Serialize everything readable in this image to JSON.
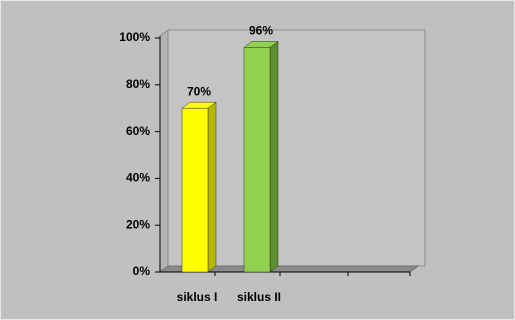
{
  "chart_data": {
    "type": "bar3d",
    "categories": [
      "siklus I",
      "siklus II"
    ],
    "values": [
      70,
      96
    ],
    "value_labels": [
      "70%",
      "96%"
    ],
    "colors": [
      "#ffff00",
      "#92d050"
    ],
    "side_colors": [
      "#b8b800",
      "#5a8f2a"
    ],
    "ylim": [
      0,
      100
    ],
    "yticks": [
      {
        "value": 0,
        "label": "0%"
      },
      {
        "value": 20,
        "label": "20%"
      },
      {
        "value": 40,
        "label": "40%"
      },
      {
        "value": 60,
        "label": "60%"
      },
      {
        "value": 80,
        "label": "80%"
      },
      {
        "value": 100,
        "label": "100%"
      }
    ]
  }
}
